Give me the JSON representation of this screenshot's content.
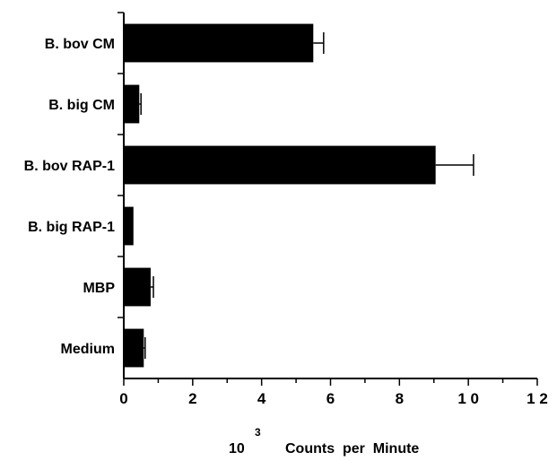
{
  "chart_data": {
    "type": "bar",
    "orientation": "horizontal",
    "categories": [
      "B. bov CM",
      "B. big CM",
      "B. bov RAP-1",
      "B. big RAP-1",
      "MBP",
      "Medium"
    ],
    "values": [
      5.5,
      0.45,
      9.05,
      0.28,
      0.78,
      0.58
    ],
    "errors": [
      0.3,
      0.05,
      1.1,
      0.0,
      0.08,
      0.04
    ],
    "xlim": [
      0,
      12
    ],
    "xticks": [
      0,
      2,
      4,
      6,
      8,
      10,
      12
    ],
    "xtick_labels": [
      "0",
      "2",
      "4",
      "6",
      "8",
      "1 0",
      "1 2"
    ],
    "xlabel_base": "10",
    "xlabel_exponent": "3",
    "xlabel_text": "Counts  per  Minute",
    "bar_color": "#000000",
    "grid": false
  }
}
